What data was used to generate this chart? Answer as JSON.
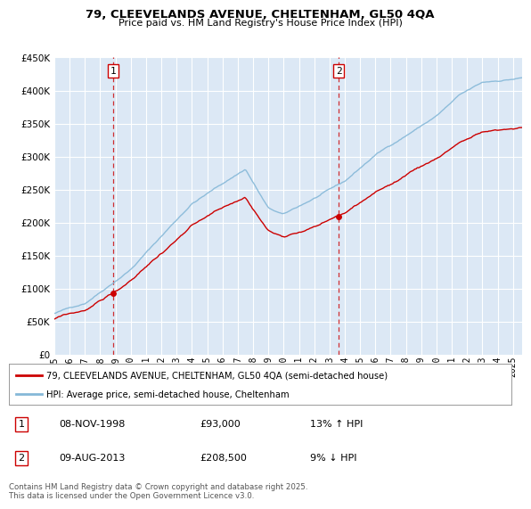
{
  "title1": "79, CLEEVELANDS AVENUE, CHELTENHAM, GL50 4QA",
  "title2": "Price paid vs. HM Land Registry's House Price Index (HPI)",
  "plot_bg": "#dce8f5",
  "red_color": "#cc0000",
  "blue_color": "#85b8d8",
  "ylim": [
    0,
    450000
  ],
  "yticks": [
    0,
    50000,
    100000,
    150000,
    200000,
    250000,
    300000,
    350000,
    400000,
    450000
  ],
  "xlim_start": 1995.0,
  "xlim_end": 2025.6,
  "sale1_year": 1998.86,
  "sale1_price": 93000,
  "sale2_year": 2013.61,
  "sale2_price": 208500,
  "legend_line1": "79, CLEEVELANDS AVENUE, CHELTENHAM, GL50 4QA (semi-detached house)",
  "legend_line2": "HPI: Average price, semi-detached house, Cheltenham",
  "note1_num": "1",
  "note1_date": "08-NOV-1998",
  "note1_price": "£93,000",
  "note1_hpi": "13% ↑ HPI",
  "note2_num": "2",
  "note2_date": "09-AUG-2013",
  "note2_price": "£208,500",
  "note2_hpi": "9% ↓ HPI",
  "footer": "Contains HM Land Registry data © Crown copyright and database right 2025.\nThis data is licensed under the Open Government Licence v3.0."
}
